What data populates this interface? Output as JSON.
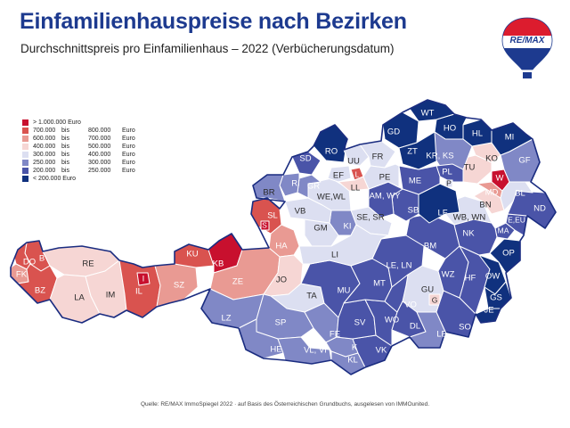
{
  "title": "Einfamilienhauspreise nach Bezirken",
  "subtitle": "Durchschnittspreis pro Einfamilienhaus – 2022 (Verbücherungsdatum)",
  "logo": {
    "text": "RE/MAX"
  },
  "source": "Quelle: RE/MAX ImmoSpiegel 2022 · auf Basis des Österreichischen Grundbuchs, ausgelesen von IMMOunited.",
  "colors": {
    "c1": "#c8102e",
    "c2": "#d9534f",
    "c3": "#e99a93",
    "c4": "#f6d6d4",
    "c5": "#dcdff1",
    "c6": "#8088c6",
    "c7": "#4a54a8",
    "c8": "#10317e",
    "border": "#ffffff",
    "outline": "#1a2c80",
    "title": "#1d3a8f"
  },
  "legend": [
    {
      "key": "c1",
      "full": "> 1.000.000 Euro"
    },
    {
      "key": "c2",
      "from": "700.000",
      "bis": "bis",
      "to": "800.000",
      "unit": "Euro"
    },
    {
      "key": "c3",
      "from": "600.000",
      "bis": "bis",
      "to": "700.000",
      "unit": "Euro"
    },
    {
      "key": "c4",
      "from": "400.000",
      "bis": "bis",
      "to": "500.000",
      "unit": "Euro"
    },
    {
      "key": "c5",
      "from": "300.000",
      "bis": "bis",
      "to": "400.000",
      "unit": "Euro"
    },
    {
      "key": "c6",
      "from": "250.000",
      "bis": "bis",
      "to": "300.000",
      "unit": "Euro"
    },
    {
      "key": "c7",
      "from": "200.000",
      "bis": "bis",
      "to": "250.000",
      "unit": "Euro"
    },
    {
      "key": "c8",
      "full": "< 200.000 Euro"
    }
  ],
  "districts": {
    "B": "B",
    "DO": "DO",
    "FK": "FK",
    "BZ": "BZ",
    "RE": "RE",
    "LA": "LA",
    "IM": "IM",
    "I": "I",
    "IL": "IL",
    "SZ": "SZ",
    "KU": "KU",
    "KB": "KB",
    "ZE": "ZE",
    "JO": "JO",
    "TA": "TA",
    "SL": "SL",
    "S": "S",
    "HA": "HA",
    "LZ": "LZ",
    "SP": "SP",
    "HE": "HE",
    "VL_VI": "VL, VI",
    "FE": "FE",
    "K": "K",
    "KL": "KL",
    "VK": "VK",
    "SV": "SV",
    "WO": "WO",
    "MU": "MU",
    "MT": "MT",
    "LE_LN": "LE, LN",
    "BM": "BM",
    "LI": "LI",
    "GU": "GU",
    "G": "G",
    "VO": "VO",
    "DL": "DL",
    "LB": "LB",
    "SO": "SO",
    "WZ": "WZ",
    "HF": "HF",
    "OW": "OW",
    "GS": "GS",
    "JE": "JE",
    "NK": "NK",
    "OP": "OP",
    "MA": "MA",
    "EU": "E,EU",
    "WB_WN": "WB, WN",
    "BN": "BN",
    "MD": "MD",
    "W": "W",
    "BL": "BL",
    "ND": "ND",
    "TU": "TU",
    "KO": "KO",
    "GF": "GF",
    "MI": "MI",
    "HL": "HL",
    "HO": "HO",
    "WT": "WT",
    "GD": "GD",
    "ZT": "ZT",
    "KR_KS": "KR, KS",
    "PL": "PL",
    "P": "P",
    "LF": "LF",
    "ME": "ME",
    "SB": "SB",
    "AM_WY": "AM, WY",
    "SE_SR": "SE, SR",
    "KI": "KI",
    "GM": "GM",
    "VB": "VB",
    "WE_WL": "WE,WL",
    "GR": "GR",
    "RI": "RI",
    "SD": "SD",
    "BR": "BR",
    "RO": "RO",
    "UU": "UU",
    "L": "L",
    "EF": "EF",
    "LL": "LL",
    "FR": "FR",
    "PE": "PE"
  }
}
